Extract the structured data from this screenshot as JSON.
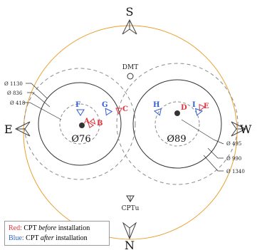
{
  "compass": {
    "north": "N",
    "south": "S",
    "east": "E",
    "west": "W"
  },
  "labels": {
    "dmt": "DMT",
    "cptu": "CPTu",
    "pile_left": "Ø76",
    "pile_right": "Ø89"
  },
  "dimensions_left": [
    "Ø 1130",
    "Ø 836",
    "Ø 418"
  ],
  "dimensions_right": [
    "Ø 495",
    "Ø 990",
    "Ø 1340"
  ],
  "points_before": [
    "A",
    "B",
    "C",
    "D",
    "E"
  ],
  "points_after": [
    "F",
    "G",
    "H",
    "I"
  ],
  "legend": {
    "red_key": "Red:",
    "red_text_1": "CPT",
    "red_emph": "before",
    "red_text_2": "installation",
    "blue_key": "Blue:",
    "blue_text_1": "CPT",
    "blue_emph": "after",
    "blue_text_2": "installation"
  },
  "colors": {
    "before": "#e2323c",
    "after": "#2f5fd1",
    "outer_circle": "#e8a030",
    "lines": "#333333",
    "dashed": "#8a8a8a"
  }
}
